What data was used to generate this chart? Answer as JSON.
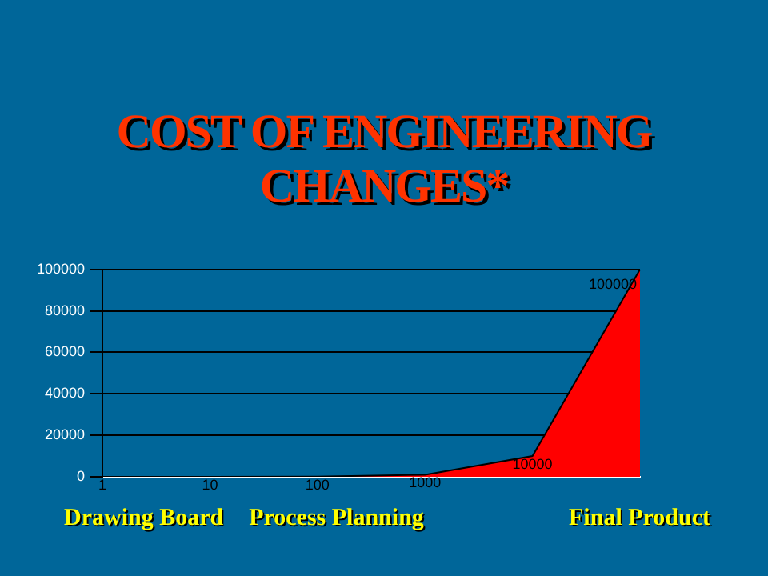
{
  "chart_data": {
    "type": "area",
    "title": "COST OF ENGINEERING CHANGES*",
    "categories": [
      null,
      null,
      null,
      null,
      null,
      null
    ],
    "values": [
      1,
      10,
      100,
      1000,
      10000,
      100000
    ],
    "color": "#ff0000",
    "ylim": [
      0,
      100000
    ],
    "yticks": [
      0,
      20000,
      40000,
      60000,
      80000,
      100000
    ],
    "grid": "y",
    "data_labels": true,
    "annotations": [
      "Drawing Board",
      "Process Planning",
      "Final Product"
    ]
  }
}
